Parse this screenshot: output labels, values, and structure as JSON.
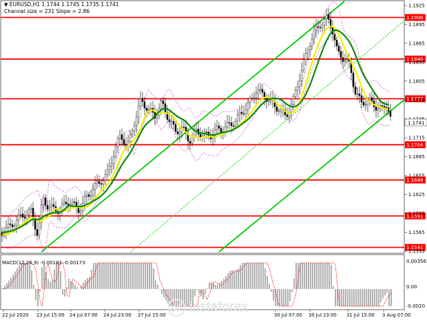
{
  "header": {
    "symbol_line": "EURUSD,H1  1.1744 1.1745 1.1735 1.1741",
    "channel_line": "Channel size = 231 Slope = 2.86"
  },
  "macd": {
    "label": "MACD(12,26,9) -0.00183 -0.00173",
    "scale_top": "0.00356",
    "scale_mid": "0.00",
    "scale_bottom": "-0.0020"
  },
  "price_axis": {
    "ticks": [
      "1.1925",
      "1.1895",
      "1.1865",
      "1.1835",
      "1.1805",
      "1.1775",
      "1.1745",
      "1.1715",
      "1.1685",
      "1.1655",
      "1.1625",
      "1.1595",
      "1.1565",
      "1.1535"
    ],
    "current_price": "1.1741"
  },
  "levels": [
    {
      "label": "1.1906",
      "color": "#ff0000"
    },
    {
      "label": "1.1840",
      "color": "#ff0000"
    },
    {
      "label": "1.1777",
      "color": "#ff0000"
    },
    {
      "label": "1.1704",
      "color": "#ff0000"
    },
    {
      "label": "1.1648",
      "color": "#ff0000"
    },
    {
      "label": "1.1591",
      "color": "#ff0000"
    },
    {
      "label": "1.1541",
      "color": "#ff0000"
    }
  ],
  "time_axis": [
    "22 Jul 2020",
    "23 Jul 15:00",
    "24 Jul 07:00",
    "24 Jul 23:00",
    "27 Jul 15:00",
    "30 Jul 07:00",
    "30 Jul 23:00",
    "31 Jul 15:00",
    "3 Aug 07:00"
  ],
  "logo": {
    "text": "instaforex"
  },
  "colors": {
    "level": "#ff0000",
    "channel": "#00cc00",
    "ma_fast": "#f0f000",
    "ma_slow": "#0a8a0a",
    "envelope": "#cc44cc",
    "macd_signal": "#ff0000",
    "macd_hist": "#b0b0b0"
  }
}
